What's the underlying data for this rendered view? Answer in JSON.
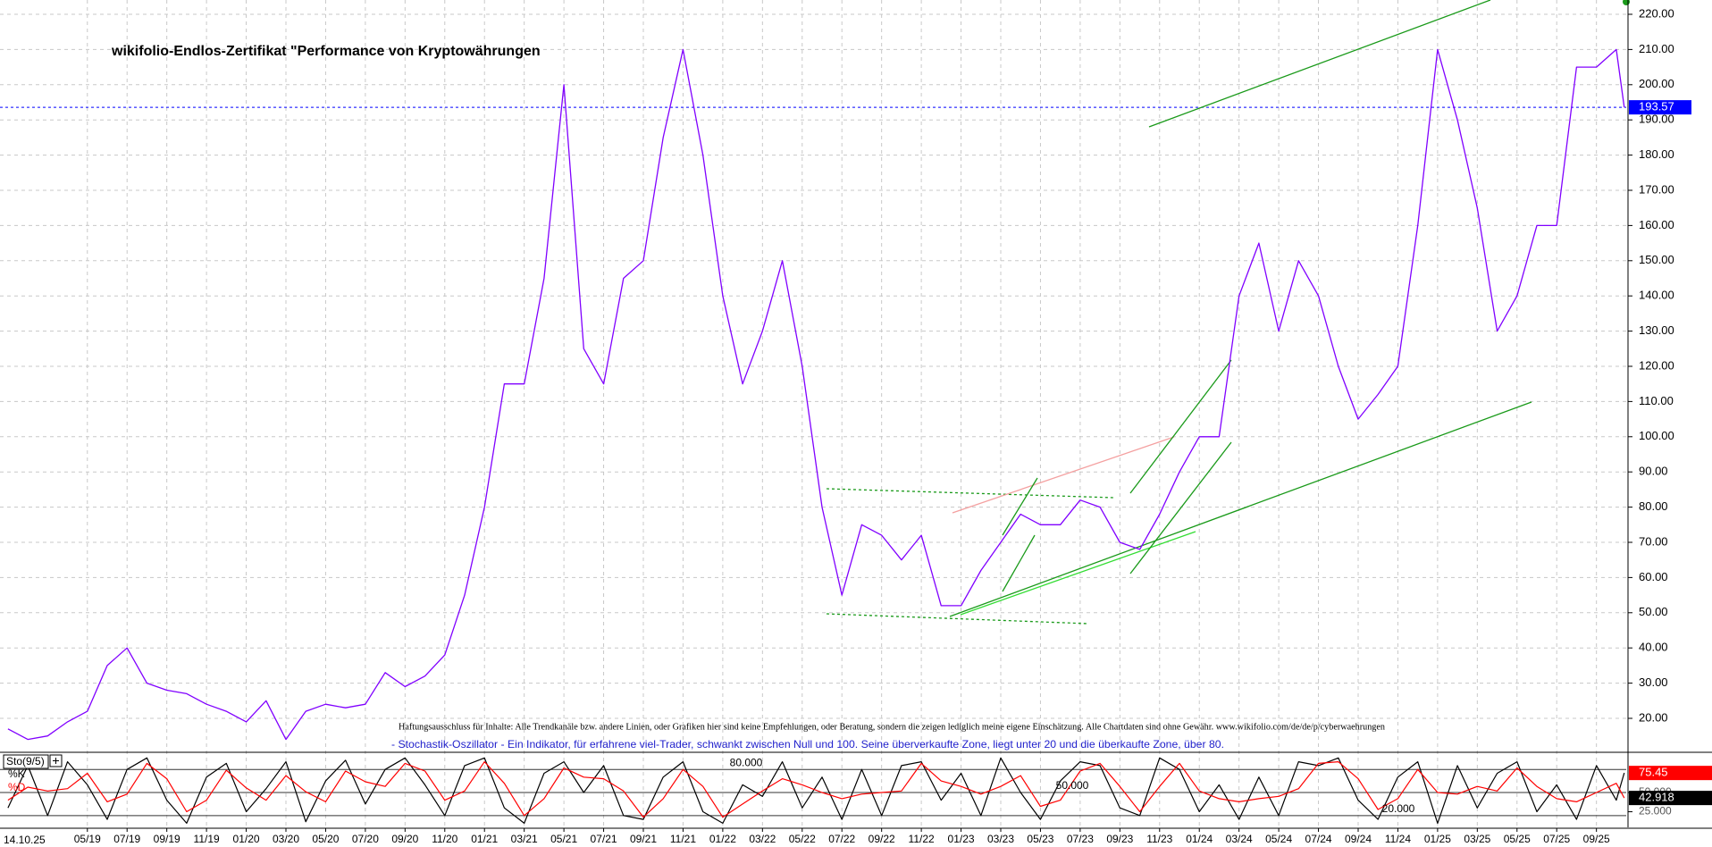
{
  "date_stamp": "14.10.25",
  "chart_data": [
    {
      "type": "line",
      "title": "wikifolio-Endlos-Zertifikat \"Performance von Kryptowährungen",
      "annotation": "Haftungsausschluss für Inhalte: Alle Trendkanäle bzw. andere Linien, oder Grafiken hier sind keine Empfehlungen, oder Beratung, sondern die zeigen lediglich meine eigene Einschätzung. Alle Chartdaten sind ohne Gewähr. www.wikifolio.com/de/de/p/cyberwaehrungen",
      "x": [
        -4,
        -3,
        -2,
        -1,
        0,
        1,
        2,
        3,
        4,
        5,
        6,
        7,
        8,
        9,
        10,
        11,
        12,
        13,
        14,
        15,
        16,
        17,
        18,
        19,
        20,
        21,
        22,
        23,
        24,
        25,
        26,
        27,
        28,
        29,
        30,
        31,
        32,
        33,
        34,
        35,
        36,
        37,
        38,
        39,
        40,
        41,
        42,
        43,
        44,
        45,
        46,
        47,
        48,
        49,
        50,
        51,
        52,
        53,
        54,
        55,
        56,
        57,
        58,
        59,
        60,
        61,
        62,
        63,
        64,
        65,
        66,
        67,
        68,
        69,
        70,
        71,
        72,
        73,
        74,
        75,
        76,
        77,
        77.4
      ],
      "xlim": [
        -4.4,
        77.5
      ],
      "xticks": [
        {
          "value": 0,
          "label": "05/19"
        },
        {
          "value": 2,
          "label": "07/19"
        },
        {
          "value": 4,
          "label": "09/19"
        },
        {
          "value": 6,
          "label": "11/19"
        },
        {
          "value": 8,
          "label": "01/20"
        },
        {
          "value": 10,
          "label": "03/20"
        },
        {
          "value": 12,
          "label": "05/20"
        },
        {
          "value": 14,
          "label": "07/20"
        },
        {
          "value": 16,
          "label": "09/20"
        },
        {
          "value": 18,
          "label": "11/20"
        },
        {
          "value": 20,
          "label": "01/21"
        },
        {
          "value": 22,
          "label": "03/21"
        },
        {
          "value": 24,
          "label": "05/21"
        },
        {
          "value": 26,
          "label": "07/21"
        },
        {
          "value": 28,
          "label": "09/21"
        },
        {
          "value": 30,
          "label": "11/21"
        },
        {
          "value": 32,
          "label": "01/22"
        },
        {
          "value": 34,
          "label": "03/22"
        },
        {
          "value": 36,
          "label": "05/22"
        },
        {
          "value": 38,
          "label": "07/22"
        },
        {
          "value": 40,
          "label": "09/22"
        },
        {
          "value": 42,
          "label": "11/22"
        },
        {
          "value": 44,
          "label": "01/23"
        },
        {
          "value": 46,
          "label": "03/23"
        },
        {
          "value": 48,
          "label": "05/23"
        },
        {
          "value": 50,
          "label": "07/23"
        },
        {
          "value": 52,
          "label": "09/23"
        },
        {
          "value": 54,
          "label": "11/23"
        },
        {
          "value": 56,
          "label": "01/24"
        },
        {
          "value": 58,
          "label": "03/24"
        },
        {
          "value": 60,
          "label": "05/24"
        },
        {
          "value": 62,
          "label": "07/24"
        },
        {
          "value": 64,
          "label": "09/24"
        },
        {
          "value": 66,
          "label": "11/24"
        },
        {
          "value": 68,
          "label": "01/25"
        },
        {
          "value": 70,
          "label": "03/25"
        },
        {
          "value": 72,
          "label": "05/25"
        },
        {
          "value": 74,
          "label": "07/25"
        },
        {
          "value": 76,
          "label": "09/25"
        }
      ],
      "ylim": [
        10.86,
        224.06
      ],
      "yticks": [
        {
          "value": 20,
          "label": "20.00"
        },
        {
          "value": 30,
          "label": "30.00"
        },
        {
          "value": 40,
          "label": "40.00"
        },
        {
          "value": 50,
          "label": "50.00"
        },
        {
          "value": 60,
          "label": "60.00"
        },
        {
          "value": 70,
          "label": "70.00"
        },
        {
          "value": 80,
          "label": "80.00"
        },
        {
          "value": 90,
          "label": "90.00"
        },
        {
          "value": 100,
          "label": "100.00"
        },
        {
          "value": 110,
          "label": "110.00"
        },
        {
          "value": 120,
          "label": "120.00"
        },
        {
          "value": 130,
          "label": "130.00"
        },
        {
          "value": 140,
          "label": "140.00"
        },
        {
          "value": 150,
          "label": "150.00"
        },
        {
          "value": 160,
          "label": "160.00"
        },
        {
          "value": 170,
          "label": "170.00"
        },
        {
          "value": 180,
          "label": "180.00"
        },
        {
          "value": 190,
          "label": "190.00"
        },
        {
          "value": 200,
          "label": "200.00"
        },
        {
          "value": 210,
          "label": "210.00"
        },
        {
          "value": 220,
          "label": "220.00"
        }
      ],
      "grid": true,
      "series": [
        {
          "color": "#8000ff",
          "values": [
            17,
            14,
            15,
            19,
            22,
            35,
            40,
            30,
            28,
            27,
            24,
            22,
            19,
            25,
            14,
            22,
            24,
            23,
            24,
            33,
            29,
            32,
            38,
            55,
            80,
            115,
            115,
            145,
            200,
            125,
            115,
            145,
            150,
            185,
            210,
            180,
            140,
            115,
            130,
            150,
            120,
            80,
            55,
            75,
            72,
            65,
            72,
            52,
            52,
            62,
            70,
            78,
            75,
            75,
            82,
            80,
            70,
            68,
            78,
            90,
            100,
            100,
            140,
            155,
            130,
            150,
            140,
            120,
            105,
            112,
            120,
            160,
            210,
            190,
            165,
            130,
            140,
            160,
            160,
            205,
            205,
            210,
            193.57
          ]
        }
      ]
    },
    {
      "type": "line",
      "title": "Sto(9/5)",
      "subtitle": "- Stochastik-Oszillator - Ein Indikator, für erfahrene viel-Trader, schwankt zwischen Null und 100. Seine überverkaufte Zone, liegt unter 20 und die überkaufte Zone, über 80.",
      "x": [
        -4,
        -3,
        -2,
        -1,
        0,
        1,
        2,
        3,
        4,
        5,
        6,
        7,
        8,
        9,
        10,
        11,
        12,
        13,
        14,
        15,
        16,
        17,
        18,
        19,
        20,
        21,
        22,
        23,
        24,
        25,
        26,
        27,
        28,
        29,
        30,
        31,
        32,
        33,
        34,
        35,
        36,
        37,
        38,
        39,
        40,
        41,
        42,
        43,
        44,
        45,
        46,
        47,
        48,
        49,
        50,
        51,
        52,
        53,
        54,
        55,
        56,
        57,
        58,
        59,
        60,
        61,
        62,
        63,
        64,
        65,
        66,
        67,
        68,
        69,
        70,
        71,
        72,
        73,
        74,
        75,
        76,
        77,
        77.4
      ],
      "xlim": [
        -4.4,
        77.5
      ],
      "ylim": [
        4.7,
        101.2
      ],
      "yticks": [
        {
          "value": 80,
          "label": "80.000"
        },
        {
          "value": 50,
          "label": "50.000"
        },
        {
          "value": 20,
          "label": "20.000"
        }
      ],
      "y2ticks": [
        {
          "value": 50,
          "label": "50.000"
        },
        {
          "value": 25,
          "label": "25.000"
        }
      ],
      "series": [
        {
          "name": "%K",
          "color": "#000000",
          "values": [
            30,
            85,
            20,
            90,
            60,
            15,
            80,
            95,
            40,
            10,
            70,
            88,
            25,
            55,
            90,
            12,
            65,
            92,
            35,
            80,
            95,
            60,
            20,
            85,
            95,
            30,
            10,
            75,
            90,
            50,
            85,
            20,
            15,
            70,
            90,
            25,
            10,
            60,
            45,
            90,
            30,
            70,
            15,
            80,
            20,
            85,
            90,
            40,
            75,
            20,
            95,
            50,
            15,
            65,
            90,
            85,
            30,
            20,
            95,
            80,
            25,
            60,
            15,
            70,
            20,
            90,
            85,
            95,
            40,
            15,
            70,
            90,
            10,
            85,
            30,
            75,
            90,
            25,
            60,
            15,
            85,
            40,
            75.45
          ]
        },
        {
          "name": "%D",
          "color": "#ff0000",
          "values": [
            40,
            57,
            52,
            55,
            75,
            38,
            48,
            88,
            68,
            25,
            40,
            79,
            56,
            40,
            72,
            51,
            38,
            78,
            64,
            58,
            88,
            78,
            40,
            52,
            90,
            62,
            20,
            42,
            82,
            70,
            68,
            52,
            18,
            42,
            80,
            58,
            18,
            35,
            52,
            68,
            60,
            50,
            42,
            48,
            50,
            52,
            88,
            65,
            58,
            48,
            58,
            72,
            32,
            40,
            78,
            88,
            58,
            25,
            58,
            88,
            52,
            42,
            38,
            42,
            45,
            55,
            88,
            90,
            68,
            28,
            42,
            80,
            50,
            48,
            58,
            52,
            82,
            58,
            42,
            38,
            50,
            62,
            42.918
          ]
        }
      ]
    }
  ]
}
